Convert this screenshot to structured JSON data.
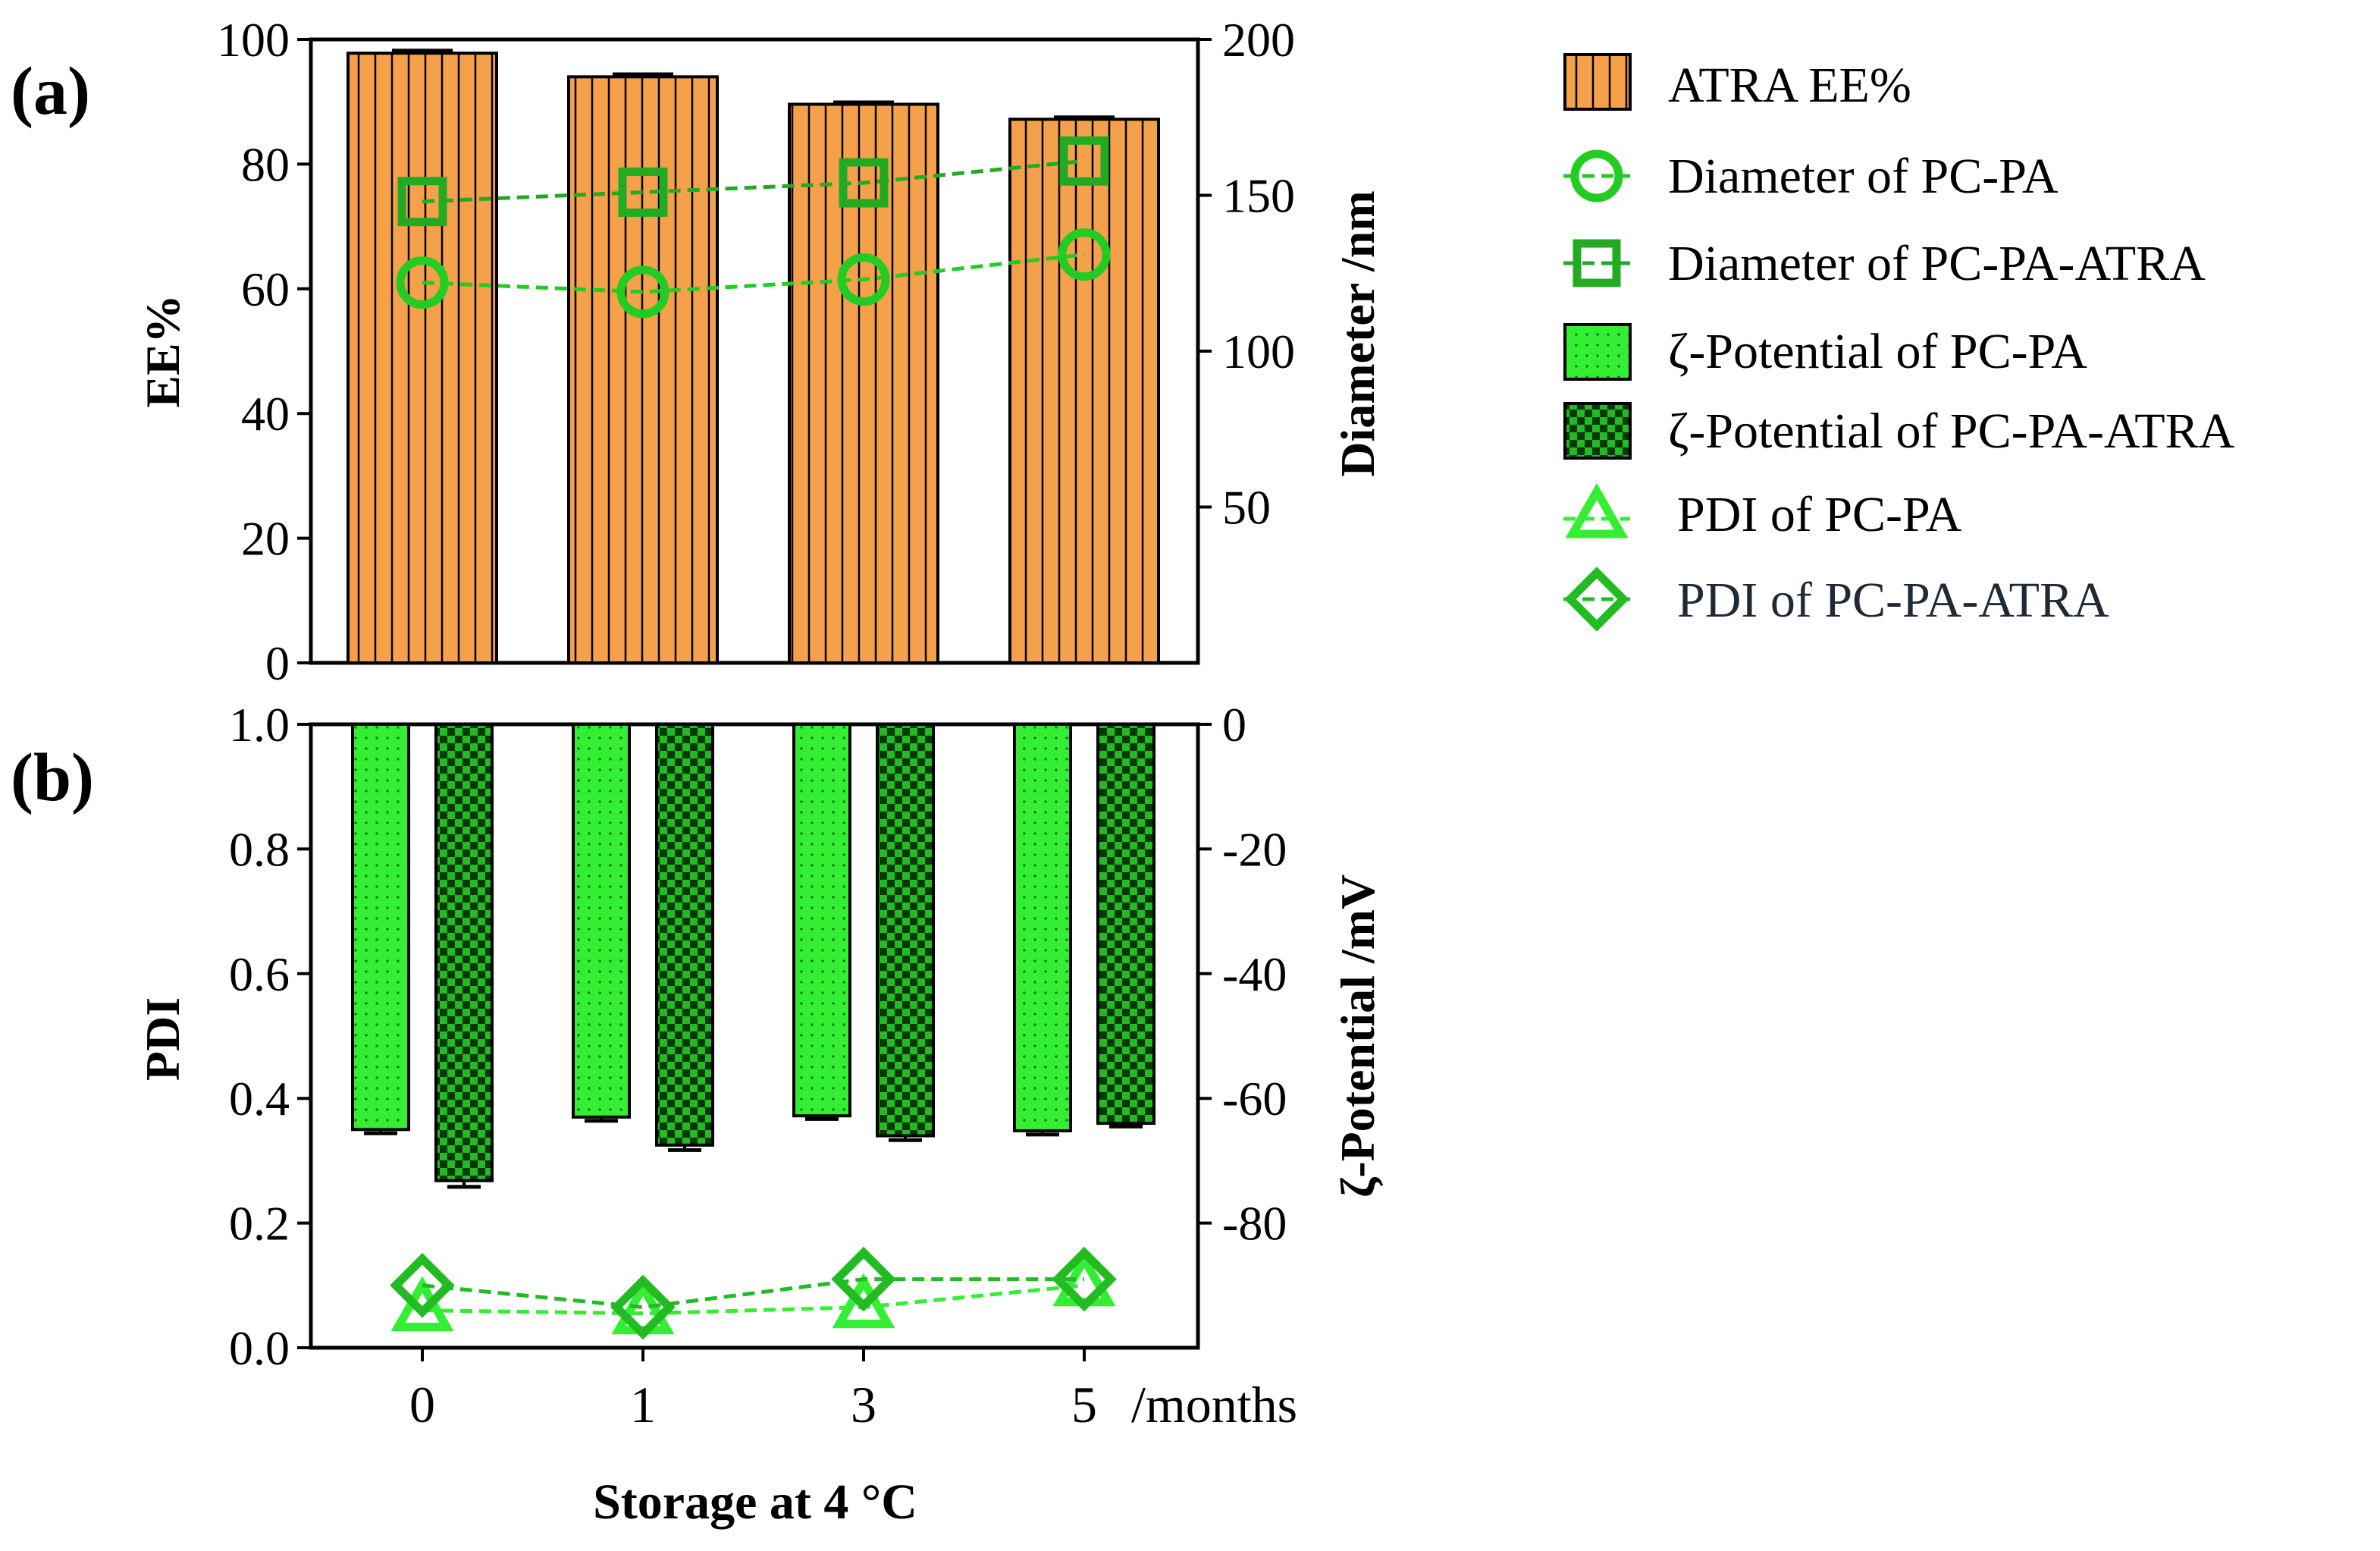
{
  "chart_data": [
    {
      "panel_label": "(a)",
      "type": "bar",
      "categories": [
        "0",
        "1",
        "3",
        "5"
      ],
      "series": [
        {
          "name": "ATRA EE%",
          "type": "bar",
          "axis": "left",
          "color": "#f5a04a",
          "values": [
            97.8,
            94.0,
            89.6,
            87.2
          ],
          "errors": [
            0.4,
            0.4,
            0.3,
            0.3
          ]
        },
        {
          "name": "Diameter of PC-PA",
          "type": "line",
          "marker": "circle",
          "axis": "right",
          "color": "#22cc22",
          "values": [
            122,
            119,
            123,
            131
          ]
        },
        {
          "name": "Diameter of PC-PA-ATRA",
          "type": "line",
          "marker": "square",
          "axis": "right",
          "color": "#22aa22",
          "values": [
            148,
            151,
            154,
            161
          ]
        }
      ],
      "ylabel_left": "EE%",
      "ylim_left": [
        0,
        100
      ],
      "yticks_left": [
        "0",
        "20",
        "40",
        "60",
        "80",
        "100"
      ],
      "ylabel_right": "Diameter /nm",
      "ylim_right": [
        0,
        200
      ],
      "yticks_right": [
        "50",
        "100",
        "150",
        "200"
      ]
    },
    {
      "panel_label": "(b)",
      "type": "bar",
      "categories": [
        "0",
        "1",
        "3",
        "5"
      ],
      "series": [
        {
          "name": "ζ-Potential of PC-PA",
          "type": "bar",
          "axis": "right",
          "color": "#33ee33",
          "values": [
            -65,
            -63,
            -62.8,
            -65.2
          ],
          "errors": [
            0.6,
            0.6,
            0.5,
            0.6
          ]
        },
        {
          "name": "ζ-Potential of PC-PA-ATRA",
          "type": "bar",
          "axis": "right",
          "color": "#0a6a0a",
          "values": [
            -73.2,
            -67.5,
            -66,
            -64
          ],
          "errors": [
            1.0,
            0.8,
            0.7,
            0.5
          ]
        },
        {
          "name": "PDI of PC-PA",
          "type": "line",
          "marker": "triangle",
          "axis": "left",
          "color": "#33ee33",
          "values": [
            0.06,
            0.055,
            0.065,
            0.1
          ]
        },
        {
          "name": "PDI of PC-PA-ATRA",
          "type": "line",
          "marker": "diamond",
          "axis": "left",
          "color": "#22bb22",
          "values": [
            0.1,
            0.065,
            0.11,
            0.11
          ]
        }
      ],
      "ylabel_left": "PDI",
      "ylim_left": [
        0,
        1.0
      ],
      "yticks_left": [
        "0.0",
        "0.2",
        "0.4",
        "0.6",
        "0.8",
        "1.0"
      ],
      "ylabel_right": "ζ-Potential /mV",
      "ylim_right": [
        -100,
        0
      ],
      "yticks_right": [
        "0",
        "-20",
        "-40",
        "-60",
        "-80"
      ],
      "xlabel": "Storage at 4 °C",
      "x_unit": "/months"
    }
  ],
  "legend": [
    {
      "label": "ATRA EE%",
      "symbol": "orange-hatched-bar"
    },
    {
      "label": "Diameter of PC-PA",
      "symbol": "circle-dashed-line"
    },
    {
      "label": "Diameter of PC-PA-ATRA",
      "symbol": "square-dashed-line"
    },
    {
      "label": "ζ-Potential of PC-PA",
      "symbol": "green-dotted-bar"
    },
    {
      "label": "ζ-Potential of PC-PA-ATRA",
      "symbol": "dark-checker-bar"
    },
    {
      "label": "PDI of PC-PA",
      "symbol": "triangle-dashed-line"
    },
    {
      "label": "PDI of PC-PA-ATRA",
      "symbol": "diamond-dashed-line"
    }
  ],
  "colors": {
    "orange": "#f5a04a",
    "light_green": "#33ee33",
    "mid_green": "#22cc22",
    "dark_green": "#0a6a0a",
    "axis": "#000000"
  }
}
